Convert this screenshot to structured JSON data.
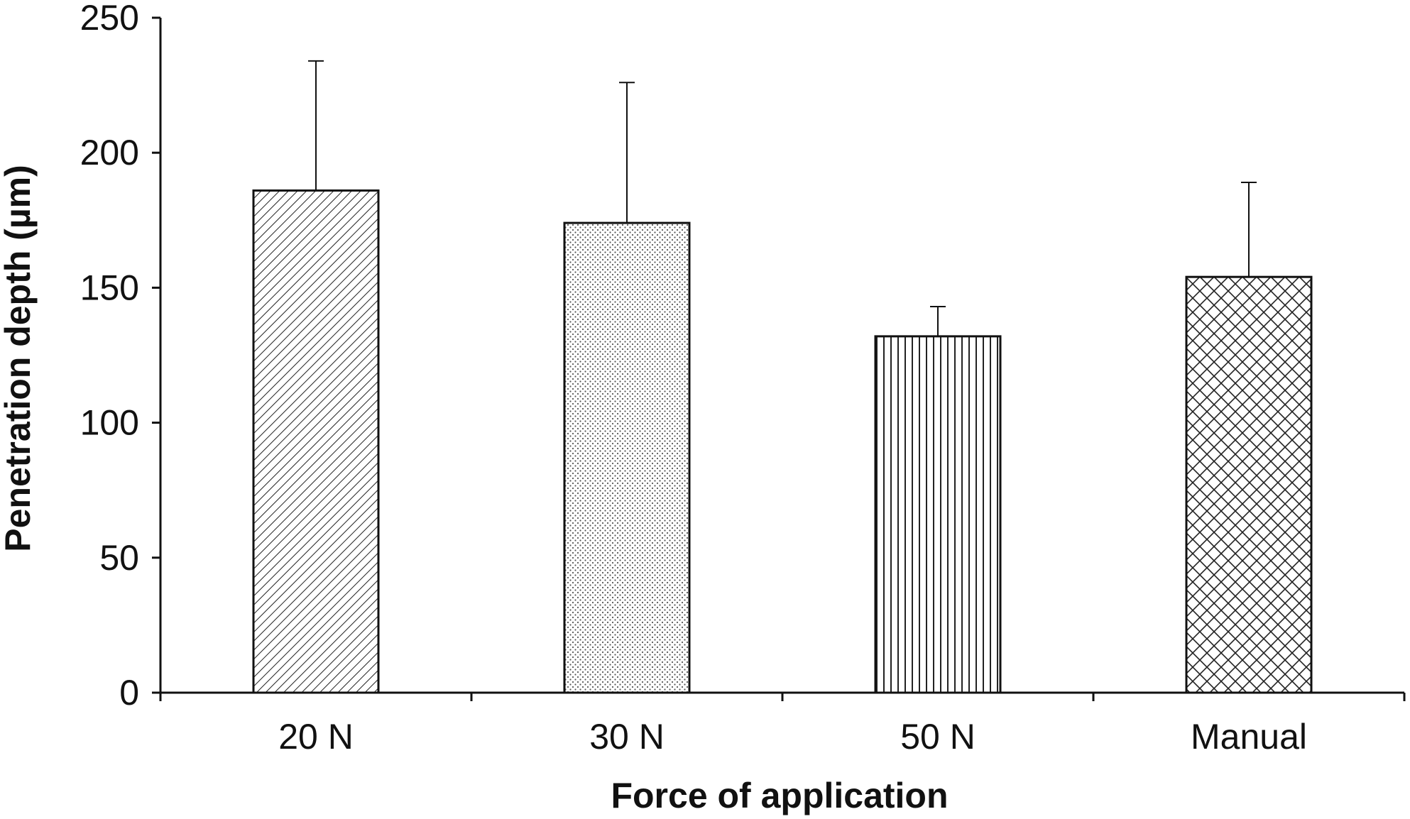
{
  "chart_data": {
    "type": "bar",
    "title": "",
    "xlabel": "Force of application",
    "ylabel": "Penetration depth (µm)",
    "categories": [
      "20 N",
      "30 N",
      "50 N",
      "Manual"
    ],
    "values": [
      186,
      174,
      132,
      154
    ],
    "error_bars_upper": [
      48,
      52,
      11,
      35
    ],
    "patterns": [
      "diagonal-hatch",
      "dots",
      "vertical-lines",
      "crosshatch"
    ],
    "ylim": [
      0,
      250
    ],
    "yticks": [
      0,
      50,
      100,
      150,
      200,
      250
    ],
    "grid": false,
    "legend": "none",
    "colors": {
      "axis": "#111111",
      "bar_fill": "#ffffff",
      "pattern": "#222222"
    }
  }
}
